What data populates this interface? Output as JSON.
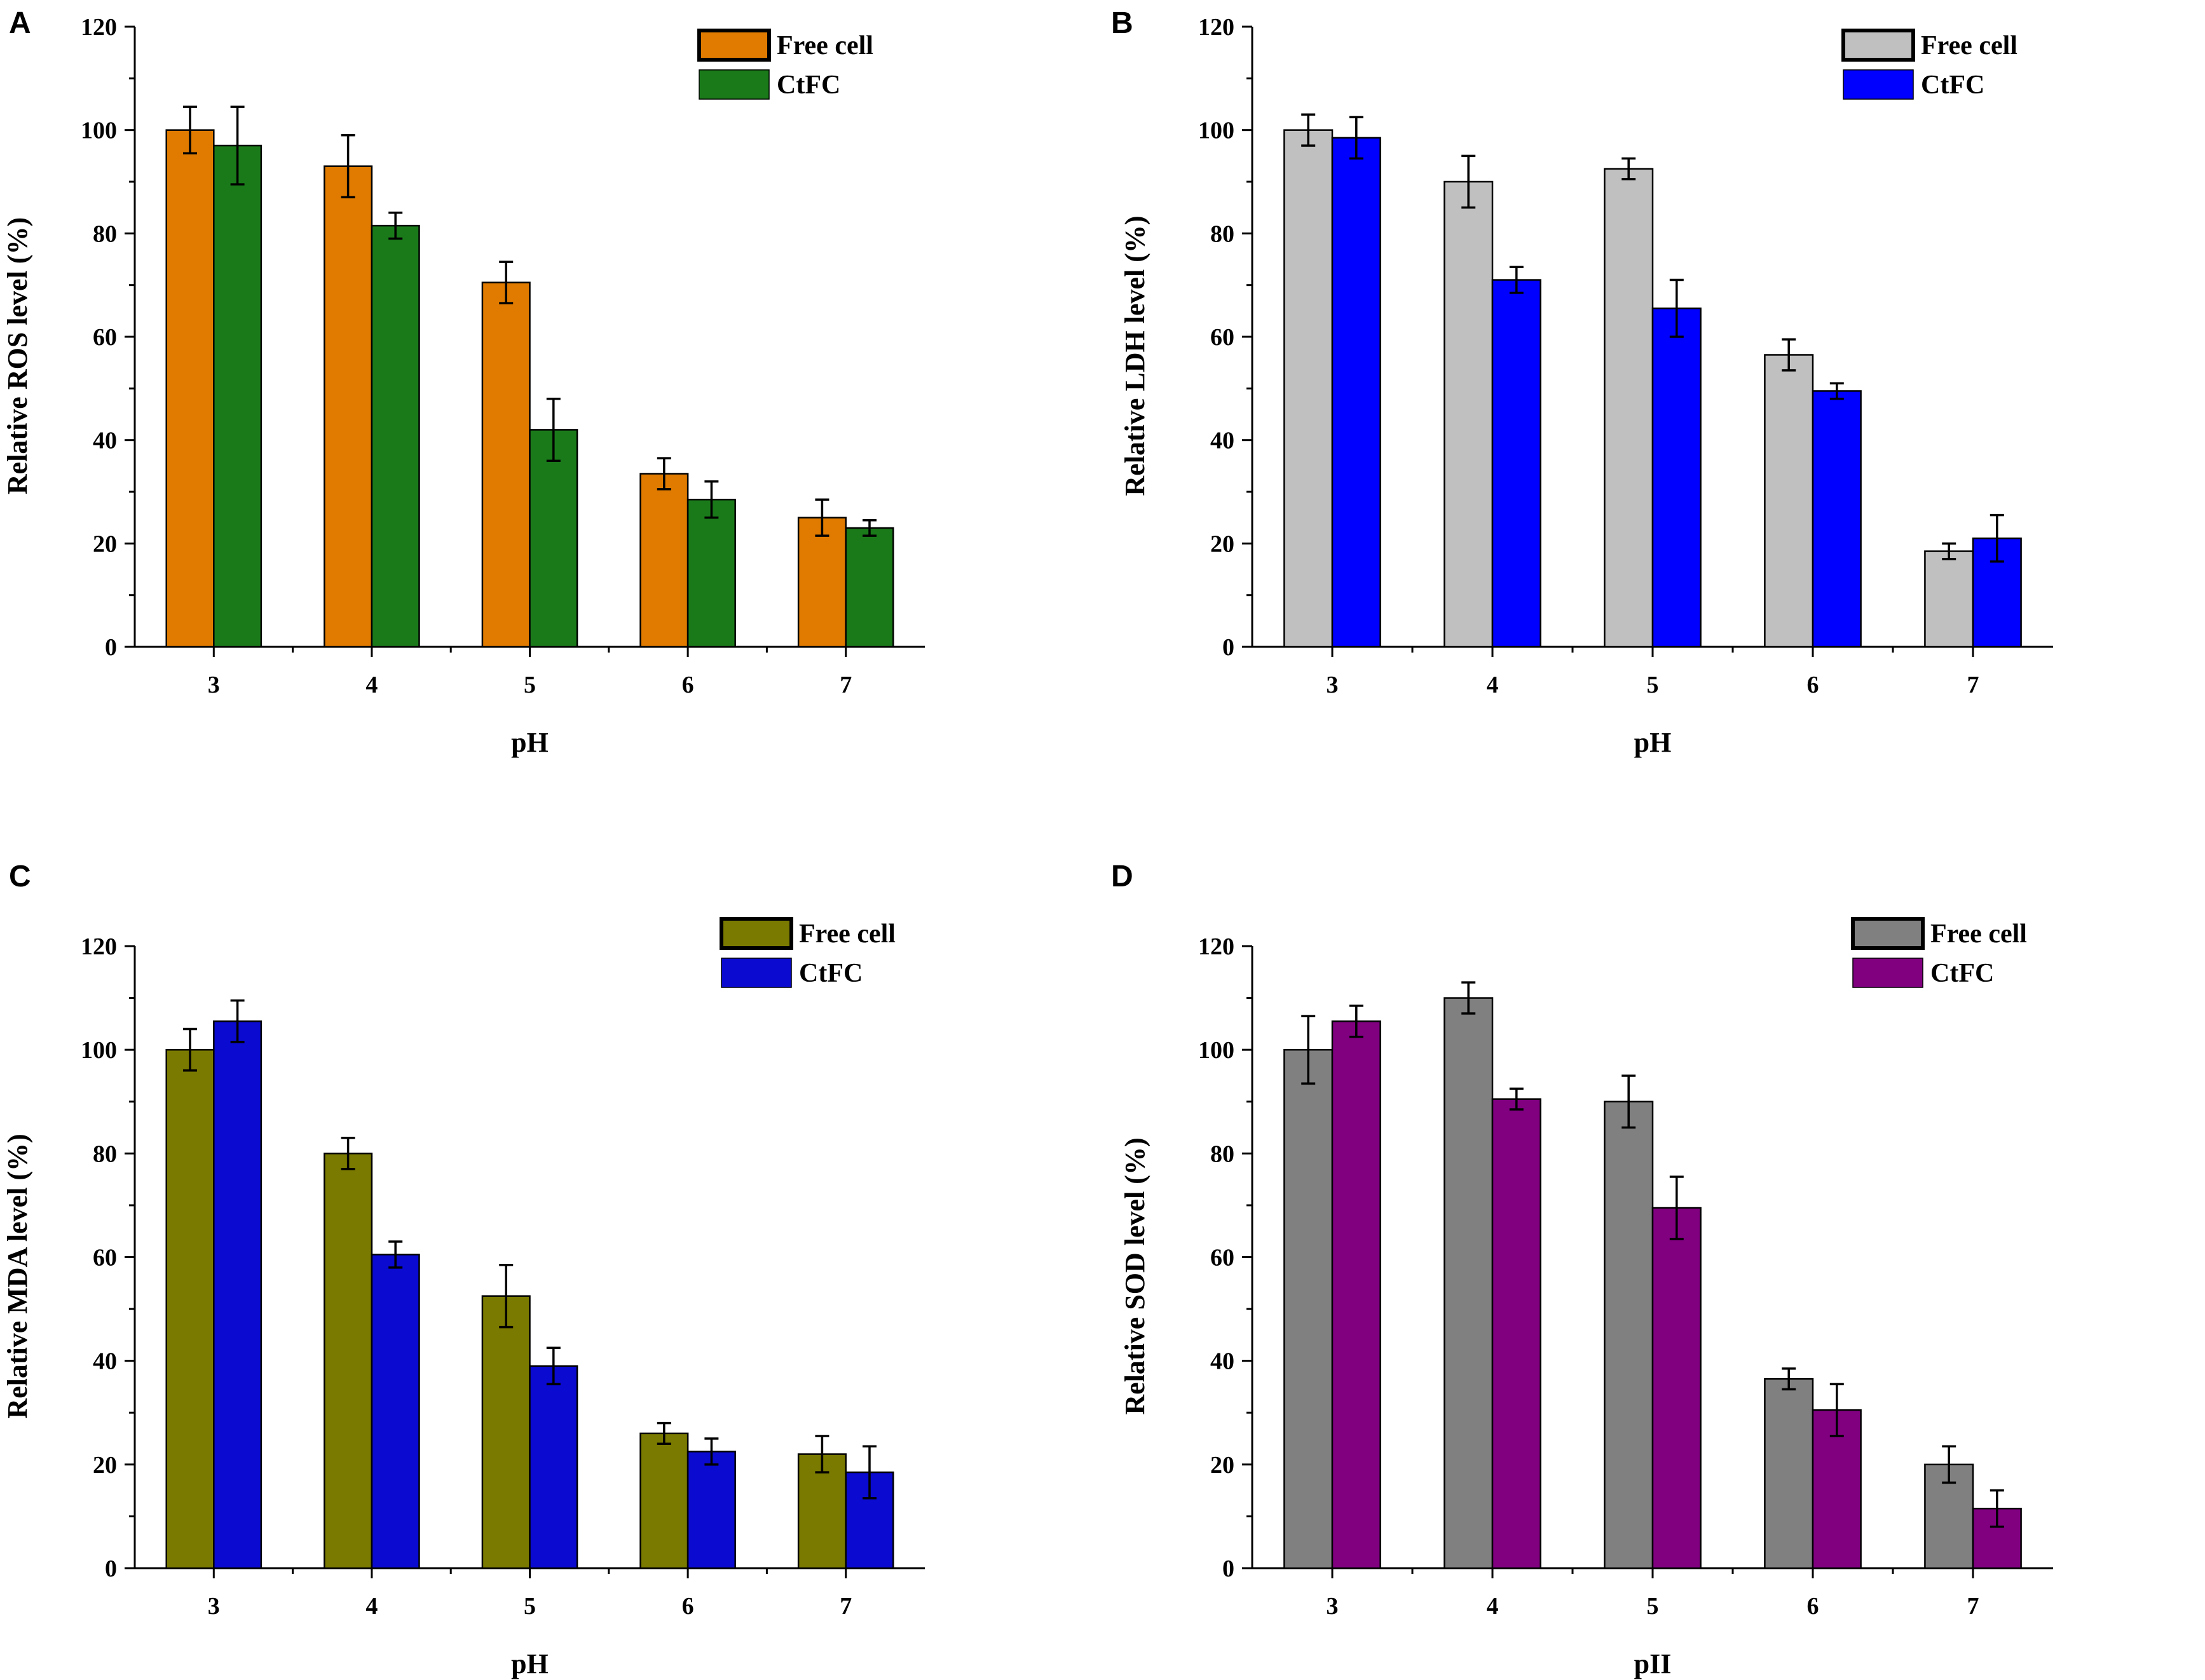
{
  "chart_data": [
    {
      "panel": "A",
      "type": "bar",
      "categories": [
        "3",
        "4",
        "5",
        "6",
        "7"
      ],
      "series": [
        {
          "name": "Free cell",
          "color": "#e07b00",
          "values": [
            100,
            93,
            70.5,
            33.5,
            25
          ],
          "errors": [
            4.5,
            6,
            4,
            3,
            3.5
          ]
        },
        {
          "name": "CtFC",
          "color": "#1a7a1a",
          "values": [
            97,
            81.5,
            42,
            28.5,
            23
          ],
          "errors": [
            7.5,
            2.5,
            6,
            3.5,
            1.5
          ]
        }
      ],
      "title": "",
      "xlabel": "pH",
      "ylabel": "Relative ROS level (%)",
      "ylim": [
        0,
        120
      ],
      "yticks": [
        "0",
        "20",
        "40",
        "60",
        "80",
        "100",
        "120"
      ],
      "legend_position": "top-right"
    },
    {
      "panel": "B",
      "type": "bar",
      "categories": [
        "3",
        "4",
        "5",
        "6",
        "7"
      ],
      "series": [
        {
          "name": "Free cell",
          "color": "#c0c0c0",
          "values": [
            100,
            90,
            92.5,
            56.5,
            18.5
          ],
          "errors": [
            3,
            5,
            2,
            3,
            1.5
          ]
        },
        {
          "name": "CtFC",
          "color": "#0000ff",
          "values": [
            98.5,
            71,
            65.5,
            49.5,
            21
          ],
          "errors": [
            4,
            2.5,
            5.5,
            1.5,
            4.5
          ]
        }
      ],
      "title": "",
      "xlabel": "pH",
      "ylabel": "Relative LDH level (%)",
      "ylim": [
        0,
        120
      ],
      "yticks": [
        "0",
        "20",
        "40",
        "60",
        "80",
        "100",
        "120"
      ],
      "legend_position": "top-right"
    },
    {
      "panel": "C",
      "type": "bar",
      "categories": [
        "3",
        "4",
        "5",
        "6",
        "7"
      ],
      "series": [
        {
          "name": "Free cell",
          "color": "#7a7a00",
          "values": [
            100,
            80,
            52.5,
            26,
            22
          ],
          "errors": [
            4,
            3,
            6,
            2,
            3.5
          ]
        },
        {
          "name": "CtFC",
          "color": "#0a0ad0",
          "values": [
            105.5,
            60.5,
            39,
            22.5,
            18.5
          ],
          "errors": [
            4,
            2.5,
            3.5,
            2.5,
            5
          ]
        }
      ],
      "title": "",
      "xlabel": "pH",
      "ylabel": "Relative MDA level (%)",
      "ylim": [
        0,
        120
      ],
      "yticks": [
        "0",
        "20",
        "40",
        "60",
        "80",
        "100",
        "120"
      ],
      "legend_position": "top-right"
    },
    {
      "panel": "D",
      "type": "bar",
      "categories": [
        "3",
        "4",
        "5",
        "6",
        "7"
      ],
      "series": [
        {
          "name": "Free cell",
          "color": "#808080",
          "values": [
            100,
            110,
            90,
            36.5,
            20
          ],
          "errors": [
            6.5,
            3,
            5,
            2,
            3.5
          ]
        },
        {
          "name": "CtFC",
          "color": "#800080",
          "values": [
            105.5,
            90.5,
            69.5,
            30.5,
            11.5
          ],
          "errors": [
            3,
            2,
            6,
            5,
            3.5
          ]
        }
      ],
      "title": "",
      "xlabel": "pII",
      "ylabel": "Relative SOD level (%)",
      "ylim": [
        0,
        120
      ],
      "yticks": [
        "0",
        "20",
        "40",
        "60",
        "80",
        "100",
        "120"
      ],
      "legend_position": "top-right"
    }
  ]
}
